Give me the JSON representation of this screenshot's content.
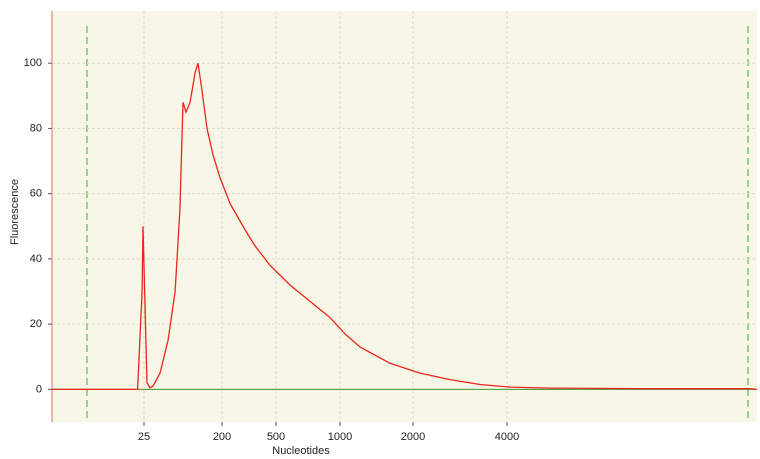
{
  "chart_data": {
    "type": "line",
    "x_label": "Nucleotides",
    "y_label": "Fluorescence",
    "x_scale": "ladder",
    "grid": true,
    "xlim": [
      2,
      25000
    ],
    "xticks": [
      25,
      200,
      500,
      1000,
      2000,
      4000
    ],
    "ylim": [
      -10,
      116
    ],
    "yticks": [
      0,
      20,
      40,
      60,
      80,
      100
    ],
    "x": [
      2,
      21,
      23.7,
      24.3,
      27.1,
      29.3,
      31.8,
      38.3,
      47.4,
      57.3,
      65.1,
      70.7,
      76.6,
      85.4,
      97.4,
      105.5,
      116.8,
      134,
      157,
      189,
      229,
      295,
      350,
      452,
      582,
      722,
      897,
      1049,
      1209,
      1608,
      2106,
      2627,
      3278,
      4089,
      5492,
      7943,
      11480,
      16600,
      23670,
      24960
    ],
    "series": [
      {
        "color": "#e8261c",
        "values": [
          0,
          0,
          30,
          50,
          2,
          0.5,
          1,
          5,
          15,
          30,
          55,
          88,
          85,
          88,
          97,
          100,
          92,
          80,
          72,
          65,
          57,
          49,
          44,
          38,
          32,
          27,
          22,
          17,
          13,
          8,
          5,
          3,
          1.5,
          0.7,
          0.4,
          0.3,
          0.2,
          0.2,
          0.2,
          0
        ]
      }
    ]
  }
}
